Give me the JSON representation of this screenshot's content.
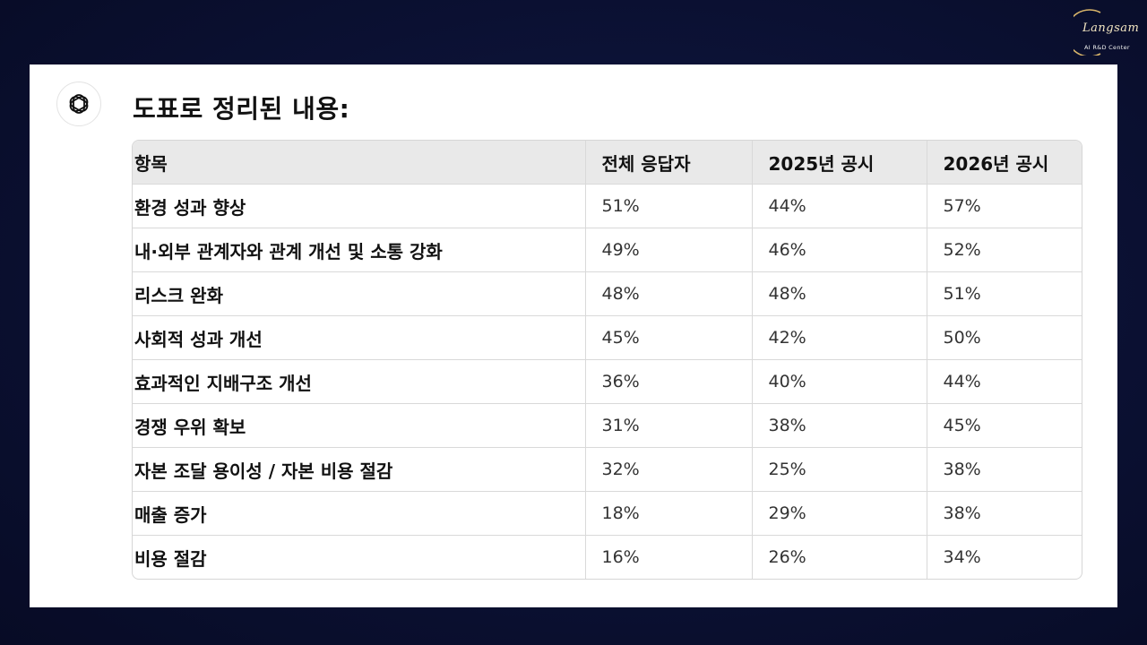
{
  "logo": {
    "script_text": "Langsam",
    "subtitle": "AI R&D Center"
  },
  "assistant": {
    "icon": "openai-logo-icon"
  },
  "heading": "도표로 정리된 내용:",
  "table": {
    "headers": [
      "항목",
      "전체 응답자",
      "2025년 공시",
      "2026년 공시"
    ],
    "rows": [
      [
        "환경 성과 향상",
        "51%",
        "44%",
        "57%"
      ],
      [
        "내·외부 관계자와 관계 개선 및 소통 강화",
        "49%",
        "46%",
        "52%"
      ],
      [
        "리스크 완화",
        "48%",
        "48%",
        "51%"
      ],
      [
        "사회적 성과 개선",
        "45%",
        "42%",
        "50%"
      ],
      [
        "효과적인 지배구조 개선",
        "36%",
        "40%",
        "44%"
      ],
      [
        "경쟁 우위 확보",
        "31%",
        "38%",
        "45%"
      ],
      [
        "자본 조달 용이성 / 자본 비용 절감",
        "32%",
        "25%",
        "38%"
      ],
      [
        "매출 증가",
        "18%",
        "29%",
        "38%"
      ],
      [
        "비용 절감",
        "16%",
        "26%",
        "34%"
      ]
    ]
  }
}
